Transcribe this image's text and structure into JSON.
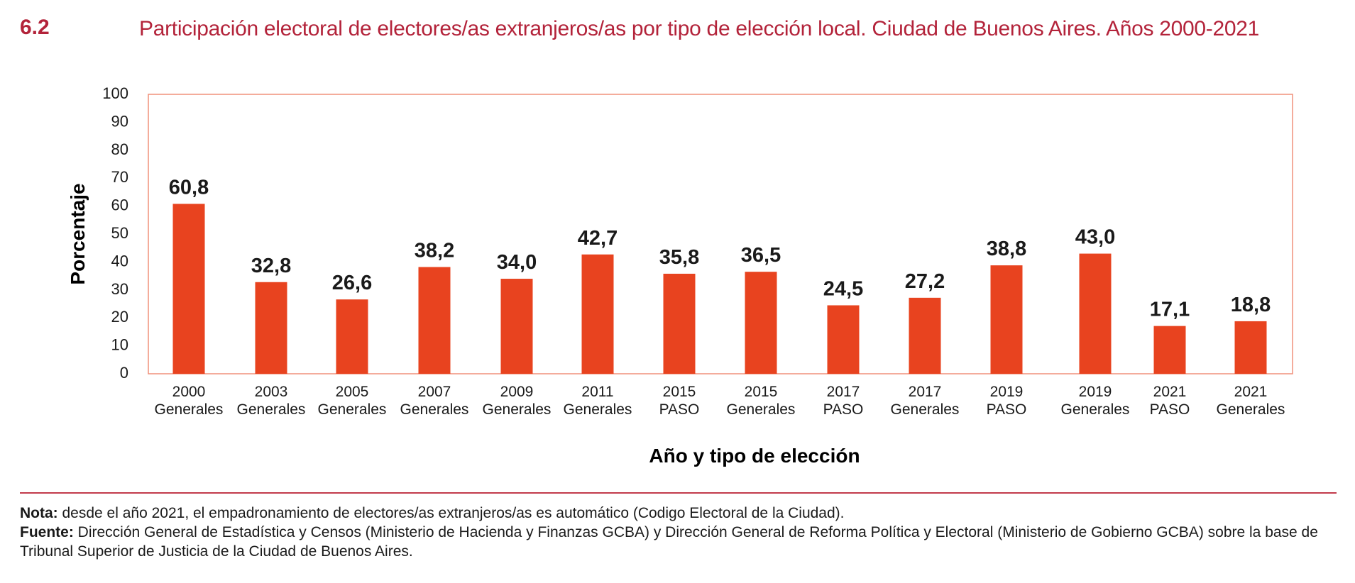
{
  "figure": {
    "number": "6.2",
    "title": "Participación electoral de electores/as extranjeros/as por tipo de elección local. Ciudad de Buenos Aires. Años 2000-2021"
  },
  "chart_data": {
    "type": "bar",
    "categories": [
      [
        "2000",
        "Generales"
      ],
      [
        "2003",
        "Generales"
      ],
      [
        "2005",
        "Generales"
      ],
      [
        "2007",
        "Generales"
      ],
      [
        "2009",
        "Generales"
      ],
      [
        "2011",
        "Generales"
      ],
      [
        "2015",
        "PASO"
      ],
      [
        "2015",
        "Generales"
      ],
      [
        "2017",
        "PASO"
      ],
      [
        "2017",
        "Generales"
      ],
      [
        "2019",
        "PASO"
      ],
      [
        "2019",
        "Generales"
      ],
      [
        "2021",
        "PASO"
      ],
      [
        "2021",
        "Generales"
      ]
    ],
    "values": [
      60.8,
      32.8,
      26.6,
      38.2,
      34.0,
      42.7,
      35.8,
      36.5,
      24.5,
      27.2,
      38.8,
      43.0,
      17.1,
      18.8
    ],
    "value_labels": [
      "60,8",
      "32,8",
      "26,6",
      "38,2",
      "34,0",
      "42,7",
      "35,8",
      "36,5",
      "24,5",
      "27,2",
      "38,8",
      "43,0",
      "17,1",
      "18,8"
    ],
    "ylabel": "Porcentaje",
    "xlabel": "Año y tipo de elección",
    "ylim": [
      0,
      100
    ],
    "yticks": [
      0,
      10,
      20,
      30,
      40,
      50,
      60,
      70,
      80,
      90,
      100
    ],
    "bar_color": "#e8431f",
    "frame_color": "#f0907a"
  },
  "notes": {
    "nota_label": "Nota:",
    "nota_text": " desde el año 2021, el empadronamiento de electores/as extranjeros/as es automático (Codigo Electoral de la Ciudad).",
    "fuente_label": "Fuente:",
    "fuente_text": " Dirección General de Estadística y Censos (Ministerio de Hacienda y Finanzas GCBA) y Dirección General de Reforma Política y Electoral (Ministerio de Gobierno GCBA) sobre la base de Tribunal Superior de Justicia de la Ciudad de Buenos Aires."
  }
}
